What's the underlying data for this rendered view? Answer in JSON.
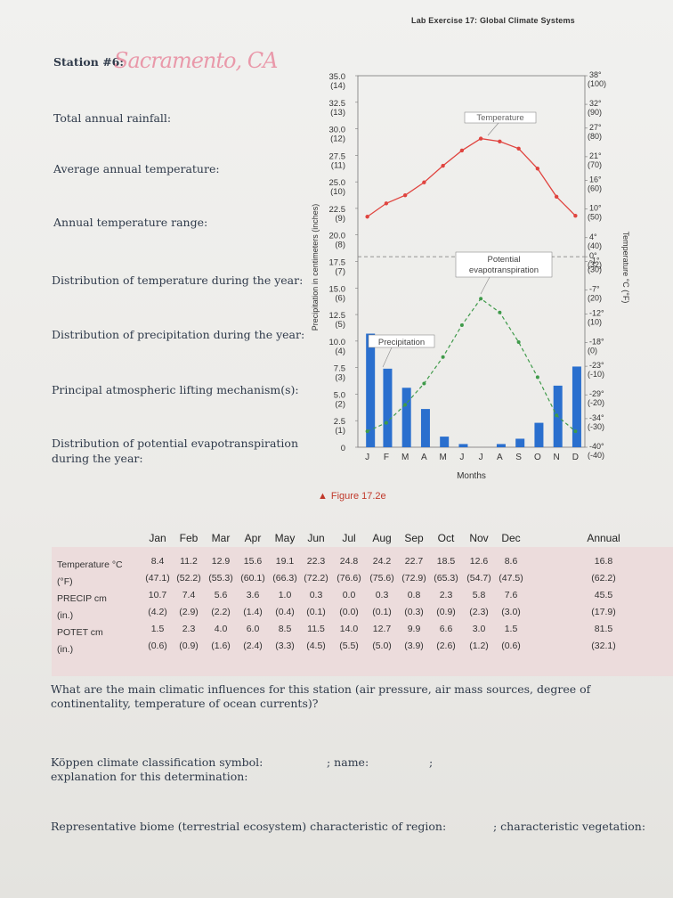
{
  "header": "Lab Exercise 17: Global Climate Systems",
  "station": {
    "label": "Station #6:",
    "handwritten": "Sacramento, CA"
  },
  "questions_left": [
    "Total annual rainfall:",
    "Average annual temperature:",
    "Annual temperature range:",
    "Distribution of temperature during the year:",
    "Distribution of precipitation during the year:",
    "Principal atmospheric lifting mechanism(s):",
    "Distribution of potential evapotranspiration during the year:"
  ],
  "figure_caption": {
    "marker": "▲",
    "text": "Figure 17.2e"
  },
  "chart_data": {
    "type": "bar",
    "categories": [
      "J",
      "F",
      "M",
      "A",
      "M",
      "J",
      "J",
      "A",
      "S",
      "O",
      "N",
      "D"
    ],
    "xlabel": "Months",
    "ylabel_left": "Precipitation in centimeters (inches)",
    "ylabel_right": "Temperature °C (°F)",
    "left_ticks": [
      {
        "cm": "35.0",
        "in": "(14)"
      },
      {
        "cm": "32.5",
        "in": "(13)"
      },
      {
        "cm": "30.0",
        "in": "(12)"
      },
      {
        "cm": "27.5",
        "in": "(11)"
      },
      {
        "cm": "25.0",
        "in": "(10)"
      },
      {
        "cm": "22.5",
        "in": "(9)"
      },
      {
        "cm": "20.0",
        "in": "(8)"
      },
      {
        "cm": "17.5",
        "in": "(7)"
      },
      {
        "cm": "15.0",
        "in": "(6)"
      },
      {
        "cm": "12.5",
        "in": "(5)"
      },
      {
        "cm": "10.0",
        "in": "(4)"
      },
      {
        "cm": "7.5",
        "in": "(3)"
      },
      {
        "cm": "5.0",
        "in": "(2)"
      },
      {
        "cm": "2.5",
        "in": "(1)"
      },
      {
        "cm": "0",
        "in": ""
      }
    ],
    "right_ticks": [
      {
        "c": "38°",
        "f": "(100)"
      },
      {
        "c": "32°",
        "f": "(90)"
      },
      {
        "c": "27°",
        "f": "(80)"
      },
      {
        "c": "21°",
        "f": "(70)"
      },
      {
        "c": "16°",
        "f": "(60)"
      },
      {
        "c": "10°",
        "f": "(50)"
      },
      {
        "c": "4°",
        "f": "(40)"
      },
      {
        "c": "0°",
        "f": "(32)"
      },
      {
        "c": "-1°",
        "f": "(30)"
      },
      {
        "c": "-7°",
        "f": "(20)"
      },
      {
        "c": "-12°",
        "f": "(10)"
      },
      {
        "c": "-18°",
        "f": "(0)"
      },
      {
        "c": "-23°",
        "f": "(-10)"
      },
      {
        "c": "-29°",
        "f": "(-20)"
      },
      {
        "c": "-34°",
        "f": "(-30)"
      },
      {
        "c": "-40°",
        "f": "(-40)"
      }
    ],
    "ylim_precip_cm": [
      0,
      35
    ],
    "ylim_temp_c": [
      -40,
      38
    ],
    "series": [
      {
        "name": "Precipitation",
        "kind": "bar",
        "color": "#2a6fce",
        "values": [
          10.7,
          7.4,
          5.6,
          3.6,
          1.0,
          0.3,
          0.0,
          0.3,
          0.8,
          2.3,
          5.8,
          7.6
        ]
      },
      {
        "name": "Temperature",
        "kind": "line",
        "color": "#e0443f",
        "values": [
          8.4,
          11.2,
          12.9,
          15.6,
          19.1,
          22.3,
          24.8,
          24.2,
          22.7,
          18.5,
          12.6,
          8.6
        ]
      },
      {
        "name": "Potential evapotranspiration",
        "kind": "dashed-line",
        "color": "#3f9a4a",
        "values": [
          1.5,
          2.3,
          4.0,
          6.0,
          8.5,
          11.5,
          14.0,
          12.7,
          9.9,
          6.6,
          3.0,
          1.5
        ]
      }
    ],
    "annotations": [
      "Temperature",
      "Potential",
      "evapotranspiration",
      "Precipitation"
    ],
    "freezing_line": "0°C dashed reference"
  },
  "table": {
    "months": [
      "Jan",
      "Feb",
      "Mar",
      "Apr",
      "May",
      "Jun",
      "Jul",
      "Aug",
      "Sep",
      "Oct",
      "Nov",
      "Dec"
    ],
    "annual_label": "Annual",
    "rows": [
      {
        "label": "Temperature °C",
        "values": [
          "8.4",
          "11.2",
          "12.9",
          "15.6",
          "19.1",
          "22.3",
          "24.8",
          "24.2",
          "22.7",
          "18.5",
          "12.6",
          "8.6"
        ],
        "annual": "16.8"
      },
      {
        "label": "(°F)",
        "values": [
          "(47.1)",
          "(52.2)",
          "(55.3)",
          "(60.1)",
          "(66.3)",
          "(72.2)",
          "(76.6)",
          "(75.6)",
          "(72.9)",
          "(65.3)",
          "(54.7)",
          "(47.5)"
        ],
        "annual": "(62.2)"
      },
      {
        "label": "PRECIP cm",
        "values": [
          "10.7",
          "7.4",
          "5.6",
          "3.6",
          "1.0",
          "0.3",
          "0.0",
          "0.3",
          "0.8",
          "2.3",
          "5.8",
          "7.6"
        ],
        "annual": "45.5"
      },
      {
        "label": "(in.)",
        "values": [
          "(4.2)",
          "(2.9)",
          "(2.2)",
          "(1.4)",
          "(0.4)",
          "(0.1)",
          "(0.0)",
          "(0.1)",
          "(0.3)",
          "(0.9)",
          "(2.3)",
          "(3.0)"
        ],
        "annual": "(17.9)"
      },
      {
        "label": "POTET cm",
        "values": [
          "1.5",
          "2.3",
          "4.0",
          "6.0",
          "8.5",
          "11.5",
          "14.0",
          "12.7",
          "9.9",
          "6.6",
          "3.0",
          "1.5"
        ],
        "annual": "81.5"
      },
      {
        "label": "(in.)",
        "values": [
          "(0.6)",
          "(0.9)",
          "(1.6)",
          "(2.4)",
          "(3.3)",
          "(4.5)",
          "(5.5)",
          "(5.0)",
          "(3.9)",
          "(2.6)",
          "(1.2)",
          "(0.6)"
        ],
        "annual": "(32.1)"
      }
    ]
  },
  "bottom": {
    "q_influences": "What are the main climatic influences for this station (air pressure, air mass sources, degree of continentality, temperature of ocean currents)?",
    "koppen_label": "Köppen climate classification symbol:",
    "name_label": "; name:",
    "name_end": ";",
    "explanation_label": "explanation for this determination:",
    "biome_label": "Representative biome (terrestrial ecosystem) characteristic of region:",
    "vegetation_label": "; characteristic vegetation:"
  }
}
